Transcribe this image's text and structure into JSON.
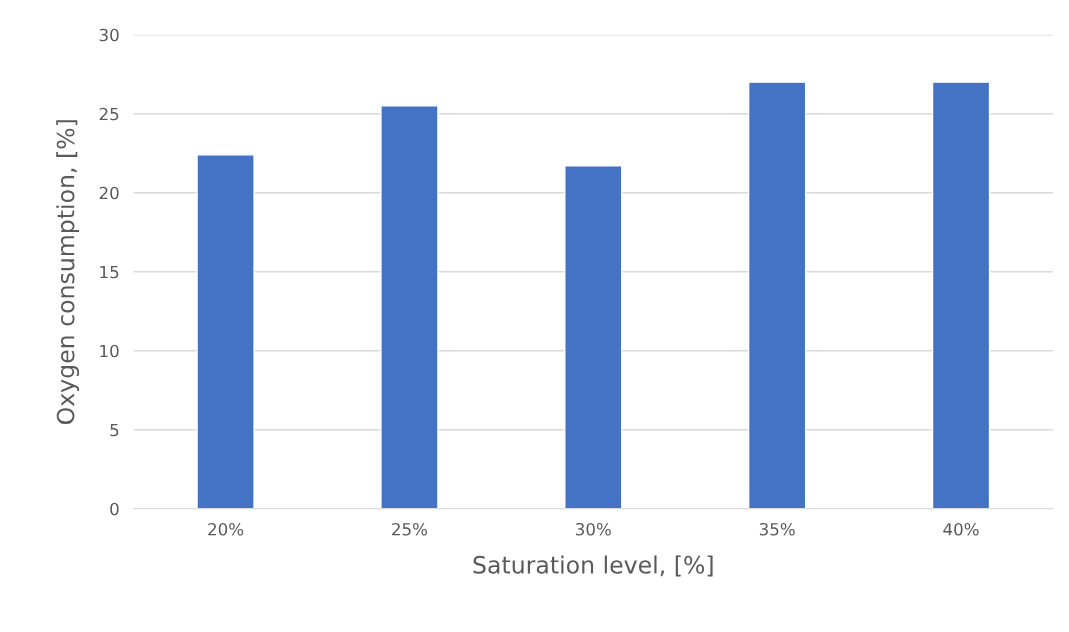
{
  "chart_data": {
    "type": "bar",
    "xlabel": "Saturation level, [%]",
    "ylabel": "Oxygen consumption, [%]",
    "categories": [
      "20%",
      "25%",
      "30%",
      "35%",
      "40%"
    ],
    "values": [
      22.4,
      25.5,
      21.7,
      27.0,
      27.0
    ],
    "color": "#4472c4",
    "ylim": [
      0,
      30
    ],
    "yticks": [
      0,
      5,
      10,
      15,
      20,
      25,
      30
    ],
    "grid": "y"
  }
}
